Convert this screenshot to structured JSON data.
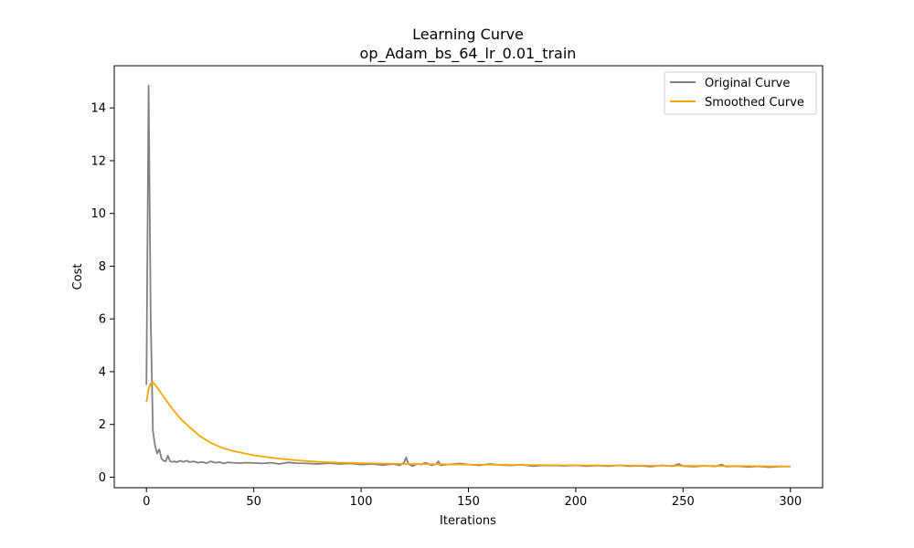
{
  "chart_data": {
    "type": "line",
    "title": "Learning Curve",
    "subtitle": "op_Adam_bs_64_lr_0.01_train",
    "xlabel": "Iterations",
    "ylabel": "Cost",
    "xlim": [
      -15,
      315
    ],
    "ylim": [
      -0.4,
      15.6
    ],
    "xticks": [
      0,
      50,
      100,
      150,
      200,
      250,
      300
    ],
    "yticks": [
      0,
      2,
      4,
      6,
      8,
      10,
      12,
      14
    ],
    "grid": false,
    "legend_placement": "top-right",
    "series": [
      {
        "name": "Original Curve",
        "color": "#808080",
        "x": [
          0,
          1,
          2,
          3,
          4,
          5,
          6,
          7,
          8,
          9,
          10,
          11,
          12,
          13,
          14,
          15,
          16,
          17,
          18,
          19,
          20,
          22,
          24,
          26,
          28,
          30,
          32,
          34,
          36,
          38,
          40,
          43,
          46,
          50,
          54,
          58,
          62,
          66,
          70,
          75,
          80,
          85,
          90,
          95,
          100,
          105,
          110,
          115,
          118,
          120,
          121,
          122,
          124,
          126,
          128,
          130,
          133,
          135,
          136,
          137,
          140,
          143,
          146,
          150,
          155,
          160,
          165,
          170,
          175,
          180,
          185,
          190,
          195,
          200,
          205,
          210,
          215,
          220,
          225,
          230,
          235,
          240,
          245,
          248,
          250,
          255,
          260,
          265,
          268,
          270,
          275,
          280,
          285,
          290,
          295,
          300
        ],
        "y": [
          3.5,
          14.85,
          6.0,
          1.75,
          1.2,
          0.9,
          1.05,
          0.7,
          0.62,
          0.6,
          0.82,
          0.6,
          0.58,
          0.6,
          0.57,
          0.6,
          0.62,
          0.58,
          0.6,
          0.63,
          0.57,
          0.6,
          0.55,
          0.58,
          0.53,
          0.6,
          0.55,
          0.57,
          0.52,
          0.56,
          0.55,
          0.53,
          0.55,
          0.54,
          0.52,
          0.55,
          0.5,
          0.56,
          0.53,
          0.52,
          0.5,
          0.53,
          0.5,
          0.52,
          0.48,
          0.5,
          0.46,
          0.5,
          0.45,
          0.55,
          0.75,
          0.5,
          0.42,
          0.5,
          0.48,
          0.55,
          0.45,
          0.5,
          0.6,
          0.45,
          0.48,
          0.5,
          0.52,
          0.48,
          0.45,
          0.5,
          0.46,
          0.45,
          0.47,
          0.42,
          0.45,
          0.44,
          0.43,
          0.45,
          0.42,
          0.44,
          0.42,
          0.45,
          0.42,
          0.43,
          0.4,
          0.45,
          0.42,
          0.5,
          0.42,
          0.4,
          0.43,
          0.41,
          0.48,
          0.4,
          0.42,
          0.39,
          0.41,
          0.38,
          0.4,
          0.4
        ]
      },
      {
        "name": "Smoothed Curve",
        "color": "#ffa500",
        "x": [
          0,
          1,
          2,
          3,
          5,
          8,
          12,
          16,
          20,
          25,
          30,
          35,
          40,
          50,
          60,
          70,
          80,
          90,
          100,
          120,
          150,
          200,
          250,
          300
        ],
        "y": [
          2.85,
          3.35,
          3.55,
          3.6,
          3.4,
          3.05,
          2.6,
          2.2,
          1.9,
          1.55,
          1.3,
          1.12,
          1.0,
          0.83,
          0.72,
          0.64,
          0.58,
          0.55,
          0.53,
          0.5,
          0.48,
          0.45,
          0.43,
          0.41
        ]
      }
    ]
  }
}
